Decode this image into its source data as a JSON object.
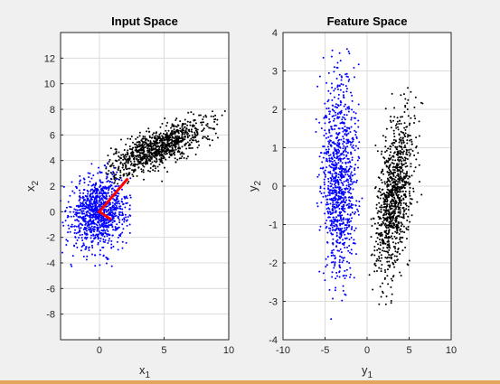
{
  "background": "#f0f0f0",
  "accent_strip_color": "#e3a55b",
  "chart_data": [
    {
      "type": "scatter",
      "title": "Input Space",
      "xlabel": {
        "base": "x",
        "sub": "1"
      },
      "ylabel": {
        "base": "x",
        "sub": "2"
      },
      "xlim": [
        -3,
        10
      ],
      "ylim": [
        -10,
        14
      ],
      "xticks": [
        0,
        5,
        10
      ],
      "yticks": [
        -8,
        -6,
        -4,
        -2,
        0,
        2,
        4,
        6,
        8,
        10,
        12
      ],
      "grid": true,
      "series": [
        {
          "color": "#0000ff",
          "marker": "dot",
          "count": 1000,
          "center": [
            0,
            0
          ],
          "std": [
            1.1,
            1.4
          ],
          "corr": 0.1,
          "extent_x": [
            -3,
            2.5
          ],
          "extent_y": [
            -4.5,
            4.5
          ]
        },
        {
          "color": "#000000",
          "marker": "dot",
          "count": 1000,
          "center": [
            4.5,
            5
          ],
          "std": [
            1.9,
            1.0
          ],
          "corr": 0.72,
          "extent_x": [
            0.5,
            10
          ],
          "extent_y": [
            2,
            8.5
          ]
        }
      ],
      "annotations": [
        {
          "type": "polyline",
          "color": "#ff0000",
          "points": [
            [
              2.2,
              2.6
            ],
            [
              0,
              0
            ],
            [
              0.9,
              -0.6
            ]
          ]
        }
      ]
    },
    {
      "type": "scatter",
      "title": "Feature Space",
      "xlabel": {
        "base": "y",
        "sub": "1"
      },
      "ylabel": {
        "base": "y",
        "sub": "2"
      },
      "xlim": [
        -10,
        10
      ],
      "ylim": [
        -4,
        4
      ],
      "xticks": [
        -10,
        -5,
        0,
        5,
        10
      ],
      "yticks": [
        -4,
        -3,
        -2,
        -1,
        0,
        1,
        2,
        3,
        4
      ],
      "grid": true,
      "series": [
        {
          "color": "#0000ff",
          "marker": "dot",
          "count": 1000,
          "center": [
            -3.3,
            0.3
          ],
          "std": [
            1.0,
            1.3
          ],
          "corr": 0.0,
          "extent_x": [
            -6.5,
            -0.5
          ],
          "extent_y": [
            -3.6,
            3.7
          ]
        },
        {
          "color": "#000000",
          "marker": "dot",
          "count": 1000,
          "center": [
            3.2,
            -0.3
          ],
          "std": [
            1.1,
            1.0
          ],
          "corr": 0.45,
          "extent_x": [
            0,
            9.5
          ],
          "extent_y": [
            -3.8,
            3
          ]
        }
      ]
    }
  ]
}
